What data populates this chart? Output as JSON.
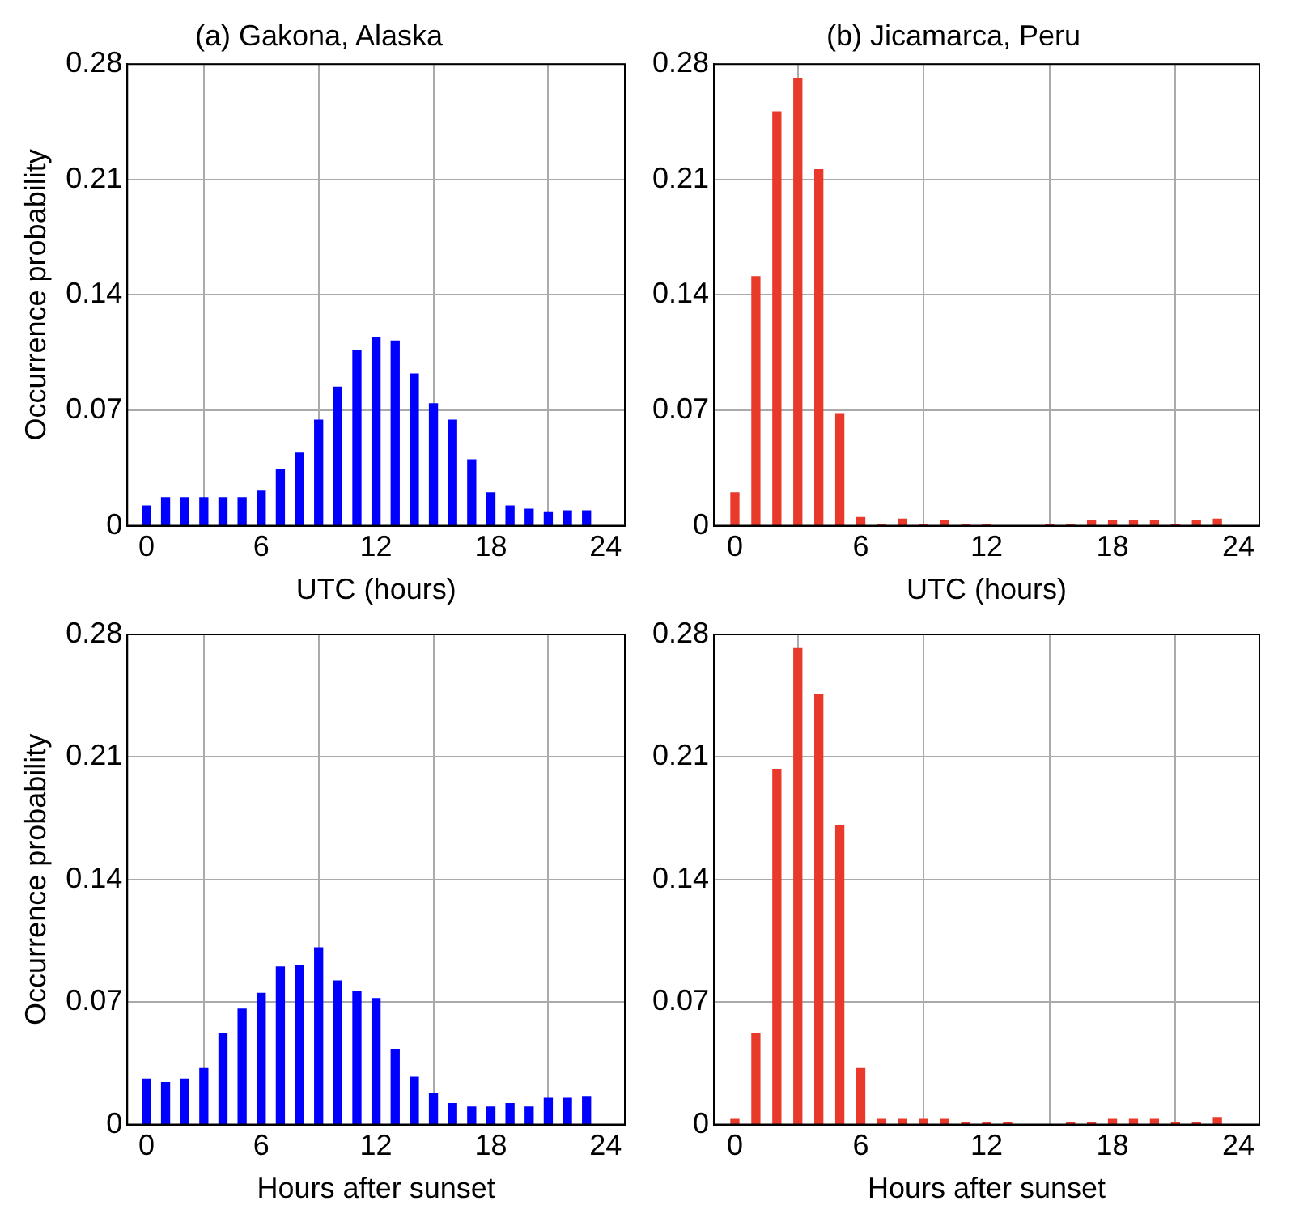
{
  "chart_data": [
    {
      "type": "bar",
      "title": "(a) Gakona, Alaska",
      "xlabel": "UTC (hours)",
      "ylabel": "Occurrence probability",
      "x": [
        0,
        1,
        2,
        3,
        4,
        5,
        6,
        7,
        8,
        9,
        10,
        11,
        12,
        13,
        14,
        15,
        16,
        17,
        18,
        19,
        20,
        21,
        22,
        23
      ],
      "values": [
        0.012,
        0.017,
        0.017,
        0.017,
        0.017,
        0.017,
        0.021,
        0.034,
        0.044,
        0.064,
        0.084,
        0.106,
        0.114,
        0.112,
        0.092,
        0.074,
        0.064,
        0.04,
        0.02,
        0.012,
        0.01,
        0.008,
        0.009,
        0.009
      ],
      "color": "#0000ff",
      "xlim": [
        -1,
        25
      ],
      "xticks": [
        0,
        6,
        12,
        18,
        24
      ],
      "ylim": [
        0,
        0.28
      ],
      "yticks": [
        0,
        0.07,
        0.14,
        0.21,
        0.28
      ],
      "grid": true
    },
    {
      "type": "bar",
      "title": "(b) Jicamarca, Peru",
      "xlabel": "UTC (hours)",
      "x": [
        0,
        1,
        2,
        3,
        4,
        5,
        6,
        7,
        8,
        9,
        10,
        11,
        12,
        13,
        14,
        15,
        16,
        17,
        18,
        19,
        20,
        21,
        22,
        23
      ],
      "values": [
        0.02,
        0.151,
        0.251,
        0.271,
        0.216,
        0.068,
        0.005,
        0.001,
        0.004,
        0.001,
        0.003,
        0.001,
        0.001,
        0,
        0,
        0.001,
        0.001,
        0.003,
        0.003,
        0.003,
        0.003,
        0.001,
        0.003,
        0.004
      ],
      "color": "#e8392b",
      "xlim": [
        -1,
        25
      ],
      "xticks": [
        0,
        6,
        12,
        18,
        24
      ],
      "ylim": [
        0,
        0.28
      ],
      "yticks": [
        0,
        0.07,
        0.14,
        0.21,
        0.28
      ],
      "grid": true
    },
    {
      "type": "bar",
      "xlabel": "Hours after sunset",
      "ylabel": "Occurrence probability",
      "x": [
        0,
        1,
        2,
        3,
        4,
        5,
        6,
        7,
        8,
        9,
        10,
        11,
        12,
        13,
        14,
        15,
        16,
        17,
        18,
        19,
        20,
        21,
        22,
        23
      ],
      "values": [
        0.026,
        0.024,
        0.026,
        0.032,
        0.052,
        0.066,
        0.075,
        0.09,
        0.091,
        0.101,
        0.082,
        0.076,
        0.072,
        0.043,
        0.027,
        0.018,
        0.012,
        0.01,
        0.01,
        0.012,
        0.01,
        0.015,
        0.015,
        0.016
      ],
      "color": "#0000ff",
      "xlim": [
        -1,
        25
      ],
      "xticks": [
        0,
        6,
        12,
        18,
        24
      ],
      "ylim": [
        0,
        0.28
      ],
      "yticks": [
        0,
        0.07,
        0.14,
        0.21,
        0.28
      ],
      "grid": true
    },
    {
      "type": "bar",
      "xlabel": "Hours after sunset",
      "x": [
        0,
        1,
        2,
        3,
        4,
        5,
        6,
        7,
        8,
        9,
        10,
        11,
        12,
        13,
        14,
        15,
        16,
        17,
        18,
        19,
        20,
        21,
        22,
        23
      ],
      "values": [
        0.003,
        0.052,
        0.203,
        0.272,
        0.246,
        0.171,
        0.032,
        0.003,
        0.003,
        0.003,
        0.003,
        0.001,
        0.001,
        0.001,
        0,
        0,
        0.001,
        0.001,
        0.003,
        0.003,
        0.003,
        0.001,
        0.001,
        0.004
      ],
      "color": "#e8392b",
      "xlim": [
        -1,
        25
      ],
      "xticks": [
        0,
        6,
        12,
        18,
        24
      ],
      "ylim": [
        0,
        0.28
      ],
      "yticks": [
        0,
        0.07,
        0.14,
        0.21,
        0.28
      ],
      "grid": true
    }
  ]
}
